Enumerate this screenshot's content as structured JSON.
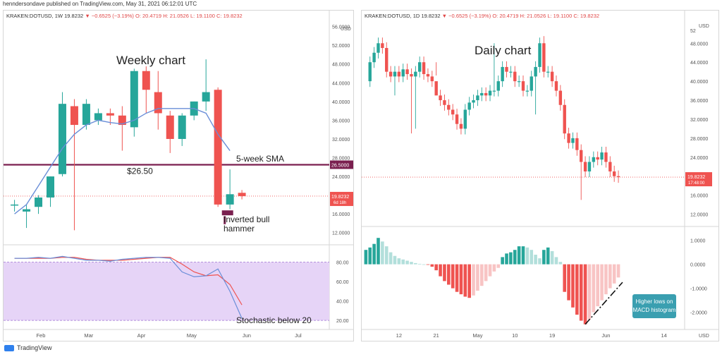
{
  "header": {
    "text": "henndersondave published on TradingView.com, May 31, 2021 06:12:01 UTC"
  },
  "footer": {
    "brand": "TradingView"
  },
  "colors": {
    "up": "#26a69a",
    "down": "#ef5350",
    "sma": "#6a8ed8",
    "level": "#7a1f4f",
    "stoch_k": "#6a8ed8",
    "stoch_d": "#ef5350",
    "stoch_band": "#e6d4f7"
  },
  "chart_data": [
    {
      "type": "candlestick",
      "legend": {
        "symbol": "KRAKEN:DOTUSD, 1W",
        "close": "19.8232",
        "change": "▼ −0.6525 (−3.19%)",
        "o": "O: 20.4719",
        "h": "H: 21.0526",
        "l": "L: 19.1100",
        "c": "C: 19.8232"
      },
      "title": "Weekly chart",
      "currency": "USD",
      "ylim": [
        10,
        57
      ],
      "y_ticks": [
        "56.0000",
        "52.0000",
        "48.0000",
        "44.0000",
        "40.0000",
        "36.0000",
        "32.0000",
        "28.0000",
        "24.0000",
        "20.0000",
        "16.0000",
        "12.0000"
      ],
      "y_tick_values": [
        56,
        52,
        48,
        44,
        40,
        36,
        32,
        28,
        24,
        20,
        16,
        12
      ],
      "x_labels": [
        {
          "label": "Feb",
          "i": 2.2
        },
        {
          "label": "Mar",
          "i": 6.2
        },
        {
          "label": "Apr",
          "i": 10.6
        },
        {
          "label": "May",
          "i": 14.8
        },
        {
          "label": "Jun",
          "i": 19.4
        },
        {
          "label": "Jul",
          "i": 23.7
        }
      ],
      "x_range": [
        -0.8,
        26.3
      ],
      "ohlc": [
        [
          18,
          19,
          16.5,
          18
        ],
        [
          16.5,
          18,
          13,
          17
        ],
        [
          17.5,
          20,
          16,
          19.5
        ],
        [
          19.5,
          24,
          17.5,
          24
        ],
        [
          24.5,
          42,
          24,
          39.5
        ],
        [
          39,
          40.5,
          12.5,
          35
        ],
        [
          35,
          40.5,
          34,
          39.5
        ],
        [
          36,
          38.5,
          35,
          37.5
        ],
        [
          37.5,
          38.5,
          35,
          37
        ],
        [
          37,
          39,
          29.5,
          35
        ],
        [
          34.5,
          47,
          32.5,
          46.5
        ],
        [
          46.5,
          47.5,
          37.5,
          42.5
        ],
        [
          42,
          46.5,
          34,
          37.5
        ],
        [
          37,
          38,
          29,
          32
        ],
        [
          32,
          37.5,
          30.5,
          37
        ],
        [
          37,
          40,
          36,
          40
        ],
        [
          40,
          49,
          38,
          42
        ],
        [
          42.5,
          43,
          17.5,
          18
        ],
        [
          18,
          25.5,
          17,
          20.2
        ],
        [
          20.5,
          21.1,
          19.1,
          19.8
        ]
      ],
      "sma_start": 4,
      "sma": [
        16,
        18,
        22,
        26,
        30,
        33,
        35,
        36,
        35.5,
        35.2,
        36,
        37.5,
        38.5,
        38.5,
        38.5,
        38.5,
        37.5,
        33,
        29.5
      ],
      "level_label": "$26.50",
      "level_value": 26.5,
      "level_tag": "26.5000",
      "last_price_tag": "19.8232",
      "last_price_sub": "6d 18h",
      "annotations": {
        "sma": "5-week SMA",
        "hammer": "Inverted bull hammer",
        "stoch": "Stochastic below 20"
      },
      "stoch": {
        "ylim": [
          15,
          95
        ],
        "ticks": [
          "80.00",
          "60.00",
          "40.00",
          "20.00"
        ],
        "tick_values": [
          80,
          60,
          40,
          20
        ],
        "band": [
          20,
          80
        ],
        "k": [
          84,
          84,
          85,
          84,
          86,
          84,
          82,
          82,
          81,
          83,
          84,
          85,
          85,
          84,
          70,
          65,
          66,
          73,
          50,
          22
        ],
        "d": [
          84,
          84,
          84,
          84,
          85,
          85,
          83,
          82,
          82,
          82,
          83,
          84,
          85,
          85,
          78,
          70,
          66,
          67,
          57,
          36
        ]
      }
    },
    {
      "type": "candlestick",
      "legend": {
        "symbol": "KRAKEN:DOTUSD, 1D",
        "close": "19.8232",
        "change": "▼ −0.6525 (−3.19%)",
        "o": "O: 20.4719",
        "h": "H: 21.0526",
        "l": "L: 19.1100",
        "c": "C: 19.8232"
      },
      "title": "Daily chart",
      "currency": "USD",
      "ylim": [
        10,
        52.5
      ],
      "y_ticks": [
        "48.0000",
        "44.0000",
        "40.0000",
        "36.0000",
        "32.0000",
        "28.0000",
        "24.0000",
        "20.0000",
        "16.0000",
        "12.0000"
      ],
      "y_tick_values": [
        48,
        44,
        40,
        36,
        32,
        28,
        24,
        20,
        16,
        12
      ],
      "y_top_tick": "52",
      "x_labels": [
        {
          "label": "12",
          "i": 8
        },
        {
          "label": "21",
          "i": 17
        },
        {
          "label": "May",
          "i": 27
        },
        {
          "label": "10",
          "i": 36
        },
        {
          "label": "19",
          "i": 45
        },
        {
          "label": "Jun",
          "i": 58
        },
        {
          "label": "14",
          "i": 72
        }
      ],
      "x_range": [
        -1,
        77
      ],
      "last_price_tag": "19.8232",
      "last_price_sub": "17:48:00",
      "closes": [
        40,
        44,
        46,
        48,
        47,
        42,
        41,
        42,
        41,
        42.5,
        41.5,
        41,
        42,
        44,
        41.5,
        41,
        40,
        37,
        36,
        35,
        34,
        33,
        31,
        30,
        34,
        35.5,
        36,
        37,
        37.5,
        37,
        38,
        38,
        40,
        43,
        42,
        42,
        40,
        40,
        38,
        38,
        41,
        43,
        48,
        42,
        42,
        40,
        38,
        35,
        29,
        27,
        28,
        25.5,
        23,
        21,
        23,
        24,
        23.5,
        25,
        23,
        21,
        20,
        19.8
      ],
      "ohlc_hl_pad": 1.2,
      "big_wicks": [
        [
          7,
          null,
          37
        ],
        [
          11,
          null,
          29
        ],
        [
          12,
          null,
          30
        ],
        [
          17,
          null,
          44
        ],
        [
          31,
          48,
          null
        ],
        [
          41,
          null,
          33
        ],
        [
          43,
          49.5,
          null
        ],
        [
          52,
          null,
          15
        ]
      ],
      "macd": {
        "ylim": [
          -2.6,
          1.4
        ],
        "ticks": [
          "1.0000",
          "0.0000",
          "-1.0000",
          "-2.0000"
        ],
        "tick_values": [
          1,
          0,
          -1,
          -2
        ],
        "values": [
          0.6,
          0.7,
          0.85,
          1.1,
          0.95,
          0.75,
          0.5,
          0.35,
          0.25,
          0.2,
          0.15,
          0.1,
          0.05,
          0.02,
          0.0,
          -0.02,
          -0.1,
          -0.25,
          -0.5,
          -0.7,
          -0.85,
          -1.0,
          -1.15,
          -1.25,
          -1.35,
          -1.4,
          -1.3,
          -1.1,
          -0.9,
          -0.7,
          -0.5,
          -0.3,
          -0.15,
          0.3,
          0.45,
          0.5,
          0.6,
          0.75,
          0.75,
          0.7,
          0.6,
          0.4,
          0.25,
          0.6,
          0.7,
          0.55,
          0.3,
          0.1,
          -1.15,
          -1.5,
          -1.8,
          -2.1,
          -2.35,
          -2.5,
          -2.3,
          -2.0,
          -1.75,
          -1.5,
          -1.25,
          -1.0,
          -0.8,
          -0.55
        ],
        "callout": "Higher lows on MACD histogram"
      },
      "currency_lower": "USD"
    }
  ]
}
